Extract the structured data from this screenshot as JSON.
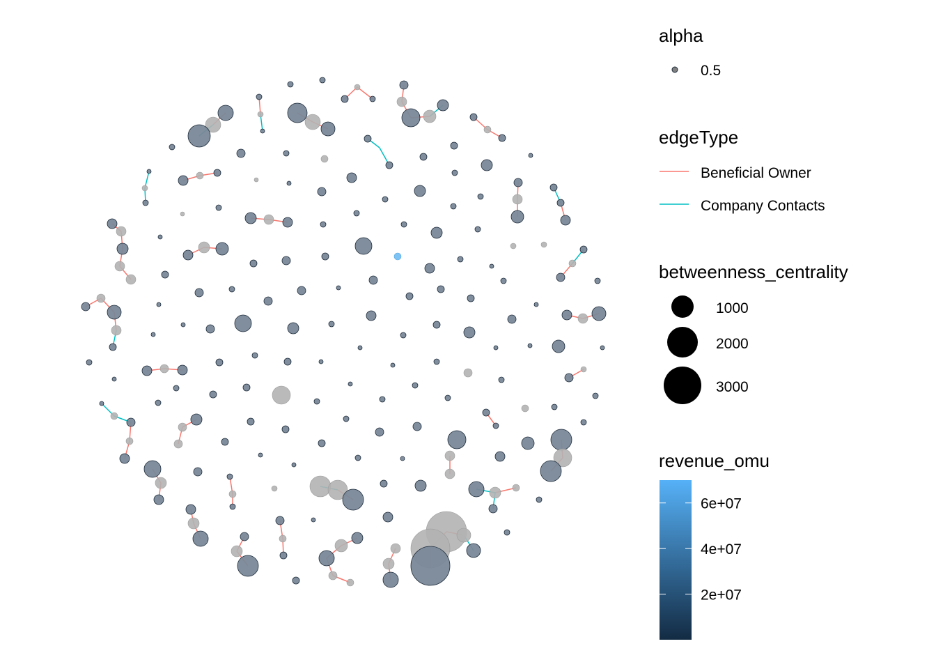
{
  "colors": {
    "node_stroke": "#1d2b3a",
    "grey_node": "#b2b2b2",
    "beneficial_owner": "#F8766D",
    "company_contacts": "#00BFC4",
    "gradient_low": "#132B43",
    "gradient_high": "#56B1F7"
  },
  "legend": {
    "alpha": {
      "title": "alpha",
      "label": "0.5"
    },
    "edge_type": {
      "title": "edgeType",
      "items": [
        {
          "label": "Beneficial Owner",
          "color": "#F8766D"
        },
        {
          "label": "Company Contacts",
          "color": "#00BFC4"
        }
      ]
    },
    "betweenness": {
      "title": "betweenness_centrality",
      "items": [
        {
          "label": "1000",
          "value": 1000
        },
        {
          "label": "2000",
          "value": 2000
        },
        {
          "label": "3000",
          "value": 3000
        }
      ]
    },
    "revenue": {
      "title": "revenue_omu",
      "ticks": [
        {
          "label": "6e+07",
          "value": 60000000
        },
        {
          "label": "4e+07",
          "value": 40000000
        },
        {
          "label": "2e+07",
          "value": 20000000
        }
      ],
      "range": [
        0,
        70000000
      ]
    }
  }
}
